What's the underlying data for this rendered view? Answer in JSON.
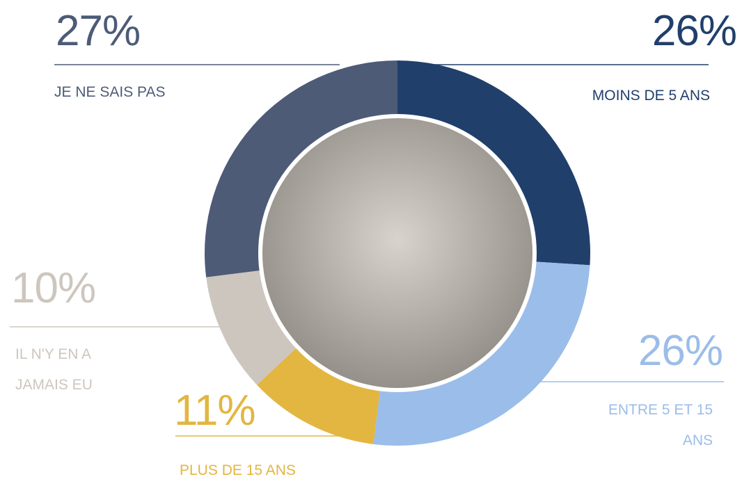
{
  "chart_data": {
    "type": "donut",
    "categories": [
      "MOINS DE 5 ANS",
      "ENTRE 5 ET 15 ANS",
      "PLUS DE 15 ANS",
      "IL N'Y EN A JAMAIS EU",
      "JE NE SAIS PAS"
    ],
    "values": [
      26,
      26,
      11,
      10,
      27
    ],
    "value_labels": [
      "26%",
      "26%",
      "11%",
      "10%",
      "27%"
    ],
    "colors": [
      "#213f6b",
      "#9bbde9",
      "#e2b640",
      "#cdc6bf",
      "#4d5b77"
    ]
  }
}
